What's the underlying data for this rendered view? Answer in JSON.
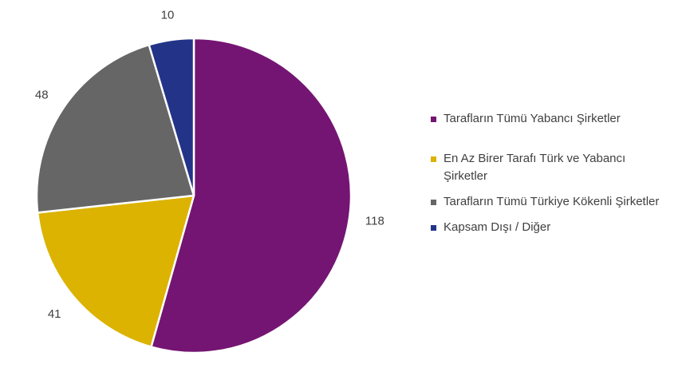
{
  "chart_data": {
    "type": "pie",
    "categories": [
      "Tarafların Tümü Yabancı Şirketler",
      "En Az Birer Tarafı Türk ve Yabancı Şirketler",
      "Tarafların Tümü Türkiye Kökenli Şirketler",
      "Kapsam Dışı / Diğer"
    ],
    "values": [
      118,
      41,
      48,
      10
    ],
    "colors": [
      "#741573",
      "#dcb300",
      "#666666",
      "#233488"
    ],
    "legend_position": "right",
    "start_angle": "12 o'clock, clockwise"
  }
}
